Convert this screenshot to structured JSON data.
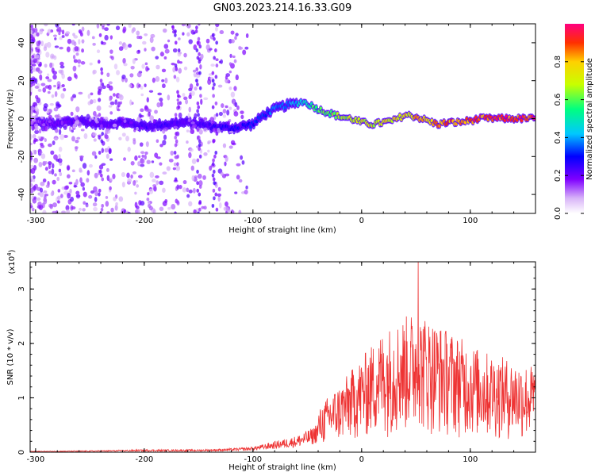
{
  "figure": {
    "title": "GN03.2023.214.16.33.G09"
  },
  "chart_data": [
    {
      "type": "heatmap",
      "title": "",
      "xlabel": "Height of straight line (km)",
      "ylabel": "Frequency (Hz)",
      "xlim": [
        -305,
        160
      ],
      "ylim": [
        -50,
        50
      ],
      "x_ticks": [
        -300,
        -200,
        -100,
        0,
        100
      ],
      "y_ticks": [
        -40,
        -20,
        0,
        20,
        40
      ],
      "colorbar": {
        "label": "Normalized spectral amplitude",
        "range": [
          0,
          1
        ],
        "ticks": [
          0.0,
          0.2,
          0.4,
          0.6,
          0.8
        ]
      },
      "ridge": {
        "x": [
          -300,
          -280,
          -260,
          -240,
          -220,
          -200,
          -180,
          -160,
          -140,
          -120,
          -100,
          -90,
          -80,
          -70,
          -60,
          -55,
          -50,
          -40,
          -30,
          -20,
          -10,
          0,
          10,
          20,
          30,
          40,
          50,
          60,
          70,
          80,
          90,
          100,
          110,
          120,
          130,
          140,
          150,
          160
        ],
        "freq": [
          -2,
          -3,
          -1,
          -3,
          -2,
          -4,
          -3,
          -2,
          -4,
          -5,
          -3,
          2,
          5,
          7,
          8,
          9,
          8,
          5,
          3,
          1,
          0,
          -2,
          -3,
          -2,
          -1,
          2,
          1,
          -1,
          -3,
          -2,
          -2,
          -1,
          0,
          0,
          0,
          0,
          0,
          0
        ],
        "amplitude": [
          0.15,
          0.2,
          0.22,
          0.2,
          0.22,
          0.25,
          0.25,
          0.22,
          0.25,
          0.3,
          0.32,
          0.35,
          0.38,
          0.4,
          0.45,
          0.5,
          0.55,
          0.6,
          0.65,
          0.68,
          0.7,
          0.72,
          0.74,
          0.76,
          0.78,
          0.8,
          0.82,
          0.84,
          0.86,
          0.88,
          0.9,
          0.9,
          0.92,
          0.94,
          0.95,
          0.95,
          0.95,
          0.95
        ]
      }
    },
    {
      "type": "line",
      "title": "",
      "xlabel": "Height of straight line (km)",
      "ylabel": "SNR (10 * v/v)",
      "y_multiplier": "(x10",
      "y_multiplier_exp": "4",
      "y_multiplier_close": ")",
      "xlim": [
        -305,
        160
      ],
      "ylim": [
        0,
        3.5
      ],
      "x_ticks": [
        -300,
        -200,
        -100,
        0,
        100
      ],
      "y_ticks": [
        0,
        1,
        2,
        3
      ],
      "grid": false,
      "series": [
        {
          "color": "#ee3333",
          "envelope_x": [
            -305,
            -250,
            -200,
            -150,
            -120,
            -100,
            -80,
            -60,
            -45,
            -40,
            -30,
            -20,
            -10,
            0,
            10,
            20,
            30,
            40,
            50,
            60,
            70,
            80,
            90,
            100,
            110,
            120,
            130,
            140,
            150,
            160
          ],
          "envelope_y": [
            0.02,
            0.03,
            0.05,
            0.05,
            0.07,
            0.1,
            0.2,
            0.3,
            0.45,
            0.6,
            0.85,
            1.0,
            1.2,
            1.4,
            1.6,
            1.8,
            1.9,
            2.0,
            2.1,
            2.0,
            1.9,
            1.8,
            1.7,
            1.6,
            1.5,
            1.45,
            1.4,
            1.35,
            1.3,
            1.28
          ],
          "peak": {
            "x": 52,
            "y": 3.5
          }
        }
      ]
    }
  ],
  "colors": {
    "line": "#ee3333",
    "frame": "#000000"
  }
}
